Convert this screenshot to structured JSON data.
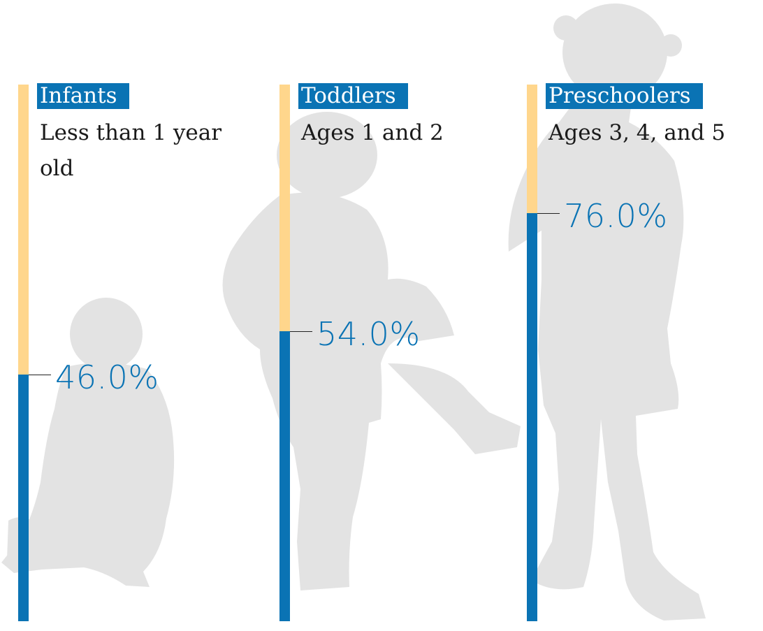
{
  "colors": {
    "filled": "#0a73b4",
    "remaining": "#ffd68c",
    "silhouette": "#e3e3e3",
    "label_bg": "#0a73b4",
    "label_text": "#ffffff"
  },
  "chart_data": {
    "type": "bar",
    "orientation": "vertical",
    "categories": [
      "Infants",
      "Toddlers",
      "Preschoolers"
    ],
    "subtitles": [
      "Less than 1 year old",
      "Ages 1 and 2",
      "Ages 3, 4, and 5"
    ],
    "values": [
      46.0,
      54.0,
      76.0
    ],
    "value_labels": [
      "46.0%",
      "54.0%",
      "76.0%"
    ],
    "ylim": [
      0,
      100
    ],
    "grid": false,
    "legend": "none"
  }
}
